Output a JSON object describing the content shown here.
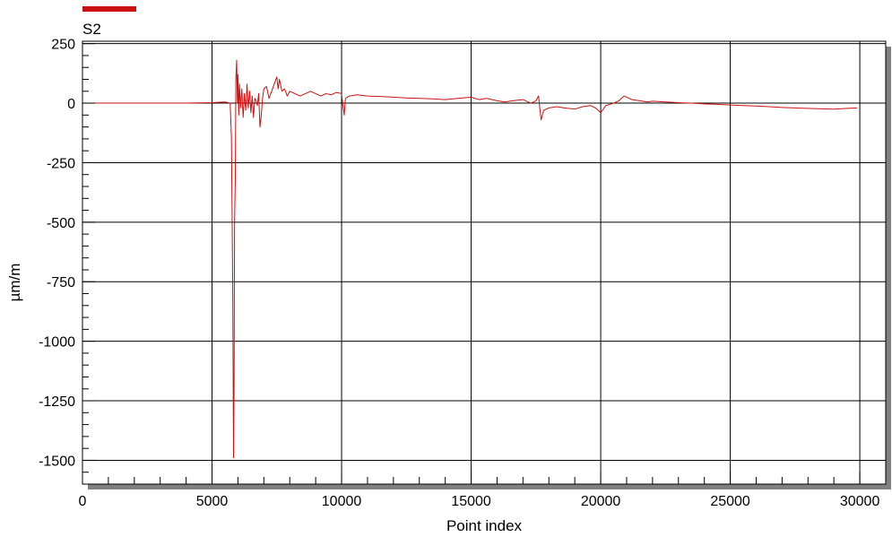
{
  "colors": {
    "series": "#cc1111",
    "grid": "#000000",
    "shadow": "#808080",
    "frame": "#000000"
  },
  "chart_data": {
    "type": "line",
    "title": "",
    "xlabel": "Point index",
    "ylabel": "µm/m",
    "xlim": [
      0,
      31000
    ],
    "ylim": [
      -1600,
      260
    ],
    "x_ticks": [
      0,
      5000,
      10000,
      15000,
      20000,
      25000,
      30000
    ],
    "x_tick_labels": [
      "0",
      "5000",
      "10000",
      "15000",
      "20000",
      "25000",
      "30000"
    ],
    "y_ticks": [
      250,
      0,
      -250,
      -500,
      -750,
      -1000,
      -1250,
      -1500
    ],
    "y_tick_labels": [
      "250",
      "0",
      "-250",
      "-500",
      "-750",
      "-1000",
      "-1250",
      "-1500"
    ],
    "grid": true,
    "legend": {
      "placement": "top-left",
      "entries": [
        "S2"
      ]
    },
    "series": [
      {
        "name": "S2",
        "x": [
          0,
          1000,
          2000,
          3000,
          4000,
          5000,
          5500,
          5700,
          5750,
          5800,
          5830,
          5850,
          5870,
          5900,
          5920,
          5950,
          5980,
          6000,
          6030,
          6060,
          6100,
          6150,
          6200,
          6250,
          6300,
          6350,
          6400,
          6450,
          6500,
          6550,
          6600,
          6650,
          6700,
          6750,
          6800,
          6850,
          6900,
          6950,
          7000,
          7100,
          7200,
          7300,
          7400,
          7500,
          7550,
          7600,
          7700,
          7800,
          7900,
          8000,
          8200,
          8400,
          8600,
          8800,
          9000,
          9200,
          9400,
          9600,
          9800,
          10000,
          10050,
          10100,
          10150,
          10300,
          10600,
          11000,
          11500,
          12000,
          12500,
          13000,
          13500,
          14000,
          14500,
          15000,
          15300,
          15600,
          16000,
          16300,
          16600,
          17000,
          17300,
          17500,
          17600,
          17700,
          17800,
          18000,
          18300,
          18600,
          19000,
          19300,
          19600,
          19800,
          20000,
          20200,
          20500,
          20700,
          20900,
          21200,
          21500,
          21800,
          22000,
          22500,
          23000,
          23500,
          24000,
          24500,
          25000,
          25500,
          26000,
          26500,
          27000,
          27500,
          28000,
          28500,
          29000,
          29500,
          29900
        ],
        "y": [
          0,
          0,
          0,
          0,
          0,
          2,
          5,
          0,
          -150,
          -800,
          -1490,
          -1200,
          -500,
          -300,
          100,
          180,
          0,
          120,
          -50,
          80,
          -20,
          60,
          -60,
          40,
          -30,
          80,
          -20,
          50,
          -40,
          30,
          -60,
          20,
          10,
          -10,
          40,
          -100,
          -50,
          20,
          60,
          70,
          20,
          50,
          80,
          110,
          60,
          100,
          50,
          60,
          30,
          50,
          40,
          30,
          40,
          50,
          40,
          30,
          40,
          35,
          45,
          40,
          -10,
          -50,
          20,
          30,
          35,
          30,
          28,
          25,
          22,
          20,
          18,
          15,
          20,
          25,
          15,
          20,
          10,
          5,
          10,
          15,
          0,
          10,
          30,
          -70,
          -30,
          -20,
          -15,
          -20,
          -25,
          -15,
          -10,
          -20,
          -40,
          -10,
          0,
          10,
          30,
          15,
          10,
          5,
          8,
          5,
          2,
          0,
          -3,
          -5,
          -8,
          -10,
          -12,
          -15,
          -18,
          -20,
          -22,
          -24,
          -25,
          -22,
          -20
        ]
      }
    ]
  }
}
